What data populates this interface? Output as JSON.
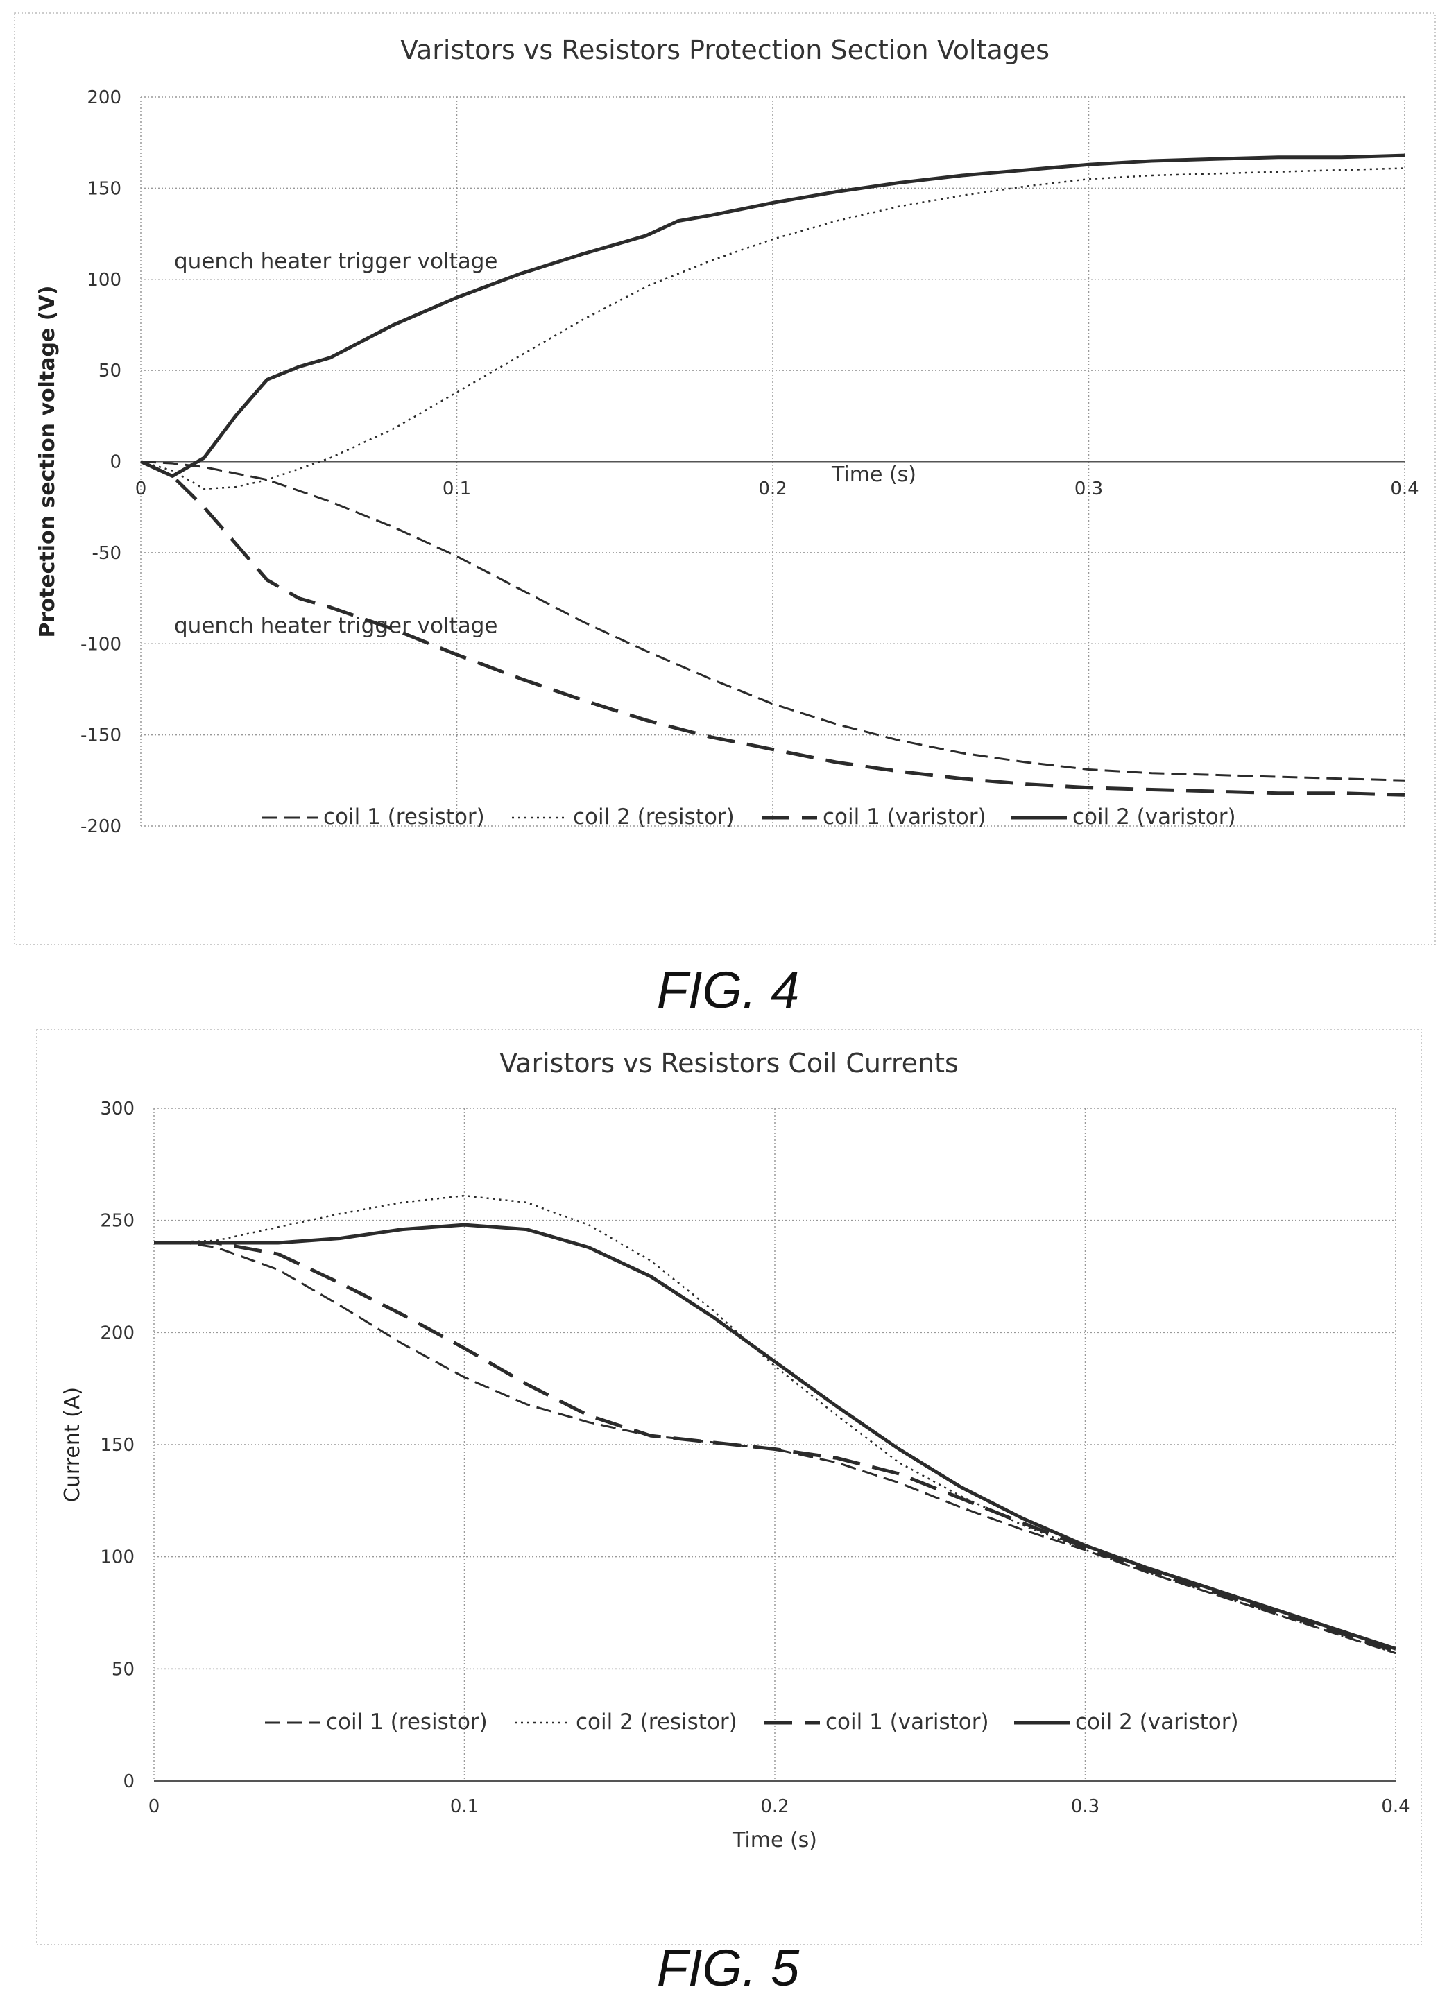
{
  "figures": [
    {
      "caption": "FIG. 4"
    },
    {
      "caption": "FIG. 5"
    }
  ],
  "chart_data": [
    {
      "type": "line",
      "title": "Varistors vs Resistors Protection Section Voltages",
      "xlabel": "Time (s)",
      "ylabel": "Protection section voltage (V)",
      "xlim": [
        0,
        0.4
      ],
      "ylim": [
        -200,
        200
      ],
      "xticks": [
        "0",
        "0.1",
        "0.2",
        "0.3",
        "0.4"
      ],
      "yticks": [
        "200",
        "150",
        "100",
        "50",
        "0",
        "-50",
        "-100",
        "-150",
        "-200"
      ],
      "grid": true,
      "legend_position": "bottom",
      "annotations": [
        {
          "text": "quench heater trigger voltage",
          "y": 100
        },
        {
          "text": "quench heater trigger voltage",
          "y": -100
        }
      ],
      "series": [
        {
          "name": "coil 1 (resistor)",
          "style": "dashed",
          "x": [
            0,
            0.01,
            0.02,
            0.04,
            0.06,
            0.08,
            0.1,
            0.12,
            0.14,
            0.16,
            0.18,
            0.2,
            0.22,
            0.24,
            0.26,
            0.28,
            0.3,
            0.32,
            0.34,
            0.36,
            0.38,
            0.4
          ],
          "y": [
            0,
            -1,
            -3,
            -10,
            -22,
            -36,
            -52,
            -70,
            -88,
            -104,
            -119,
            -133,
            -144,
            -153,
            -160,
            -165,
            -169,
            -171,
            -172,
            -173,
            -174,
            -175
          ]
        },
        {
          "name": "coil 2 (resistor)",
          "style": "dotted",
          "x": [
            0,
            0.01,
            0.02,
            0.03,
            0.04,
            0.06,
            0.08,
            0.1,
            0.12,
            0.14,
            0.16,
            0.18,
            0.2,
            0.22,
            0.24,
            0.26,
            0.28,
            0.3,
            0.32,
            0.34,
            0.36,
            0.38,
            0.4
          ],
          "y": [
            0,
            -5,
            -15,
            -14,
            -10,
            2,
            18,
            38,
            58,
            78,
            96,
            110,
            122,
            132,
            140,
            146,
            151,
            155,
            157,
            158,
            159,
            160,
            161
          ]
        },
        {
          "name": "coil 1 (varistor)",
          "style": "long-dash",
          "x": [
            0,
            0.01,
            0.02,
            0.03,
            0.04,
            0.05,
            0.06,
            0.08,
            0.1,
            0.12,
            0.14,
            0.16,
            0.18,
            0.2,
            0.22,
            0.24,
            0.26,
            0.28,
            0.3,
            0.32,
            0.34,
            0.36,
            0.38,
            0.4
          ],
          "y": [
            0,
            -8,
            -25,
            -45,
            -65,
            -75,
            -80,
            -92,
            -106,
            -119,
            -131,
            -142,
            -151,
            -158,
            -165,
            -170,
            -174,
            -177,
            -179,
            -180,
            -181,
            -182,
            -182,
            -183
          ]
        },
        {
          "name": "coil 2 (varistor)",
          "style": "solid",
          "x": [
            0,
            0.01,
            0.02,
            0.03,
            0.04,
            0.05,
            0.06,
            0.08,
            0.1,
            0.12,
            0.14,
            0.16,
            0.17,
            0.18,
            0.2,
            0.22,
            0.24,
            0.26,
            0.28,
            0.3,
            0.32,
            0.34,
            0.36,
            0.38,
            0.4
          ],
          "y": [
            0,
            -8,
            2,
            25,
            45,
            52,
            57,
            75,
            90,
            103,
            114,
            124,
            132,
            135,
            142,
            148,
            153,
            157,
            160,
            163,
            165,
            166,
            167,
            167,
            168
          ]
        }
      ]
    },
    {
      "type": "line",
      "title": "Varistors vs Resistors Coil Currents",
      "xlabel": "Time (s)",
      "ylabel": "Current (A)",
      "xlim": [
        0,
        0.4
      ],
      "ylim": [
        0,
        300
      ],
      "xticks": [
        "0",
        "0.1",
        "0.2",
        "0.3",
        "0.4"
      ],
      "yticks": [
        "300",
        "250",
        "200",
        "150",
        "100",
        "50",
        "0"
      ],
      "grid": true,
      "legend_position": "bottom",
      "series": [
        {
          "name": "coil 1 (resistor)",
          "style": "dashed",
          "x": [
            0,
            0.01,
            0.02,
            0.04,
            0.06,
            0.08,
            0.1,
            0.12,
            0.14,
            0.16,
            0.18,
            0.2,
            0.22,
            0.24,
            0.26,
            0.28,
            0.3,
            0.32,
            0.34,
            0.36,
            0.38,
            0.4
          ],
          "y": [
            240,
            240,
            238,
            228,
            212,
            195,
            180,
            168,
            160,
            154,
            151,
            148,
            142,
            133,
            122,
            112,
            103,
            93,
            84,
            75,
            66,
            57
          ]
        },
        {
          "name": "coil 2 (resistor)",
          "style": "dotted",
          "x": [
            0,
            0.02,
            0.04,
            0.06,
            0.08,
            0.1,
            0.12,
            0.14,
            0.16,
            0.18,
            0.2,
            0.22,
            0.24,
            0.26,
            0.28,
            0.3,
            0.32,
            0.34,
            0.36,
            0.38,
            0.4
          ],
          "y": [
            240,
            241,
            247,
            253,
            258,
            261,
            258,
            248,
            232,
            210,
            185,
            163,
            142,
            127,
            114,
            103,
            93,
            84,
            75,
            66,
            57
          ]
        },
        {
          "name": "coil 1 (varistor)",
          "style": "long-dash",
          "x": [
            0,
            0.02,
            0.04,
            0.06,
            0.08,
            0.1,
            0.12,
            0.14,
            0.16,
            0.18,
            0.2,
            0.22,
            0.24,
            0.26,
            0.28,
            0.3,
            0.32,
            0.34,
            0.36,
            0.38,
            0.4
          ],
          "y": [
            240,
            240,
            235,
            222,
            208,
            193,
            177,
            163,
            154,
            151,
            148,
            144,
            137,
            126,
            115,
            104,
            94,
            85,
            76,
            67,
            58
          ]
        },
        {
          "name": "coil 2 (varistor)",
          "style": "solid",
          "x": [
            0,
            0.02,
            0.04,
            0.06,
            0.08,
            0.1,
            0.12,
            0.14,
            0.16,
            0.18,
            0.2,
            0.22,
            0.24,
            0.26,
            0.28,
            0.3,
            0.32,
            0.34,
            0.36,
            0.38,
            0.4
          ],
          "y": [
            240,
            240,
            240,
            242,
            246,
            248,
            246,
            238,
            225,
            207,
            187,
            167,
            148,
            131,
            117,
            105,
            95,
            86,
            77,
            68,
            59
          ]
        }
      ]
    }
  ]
}
